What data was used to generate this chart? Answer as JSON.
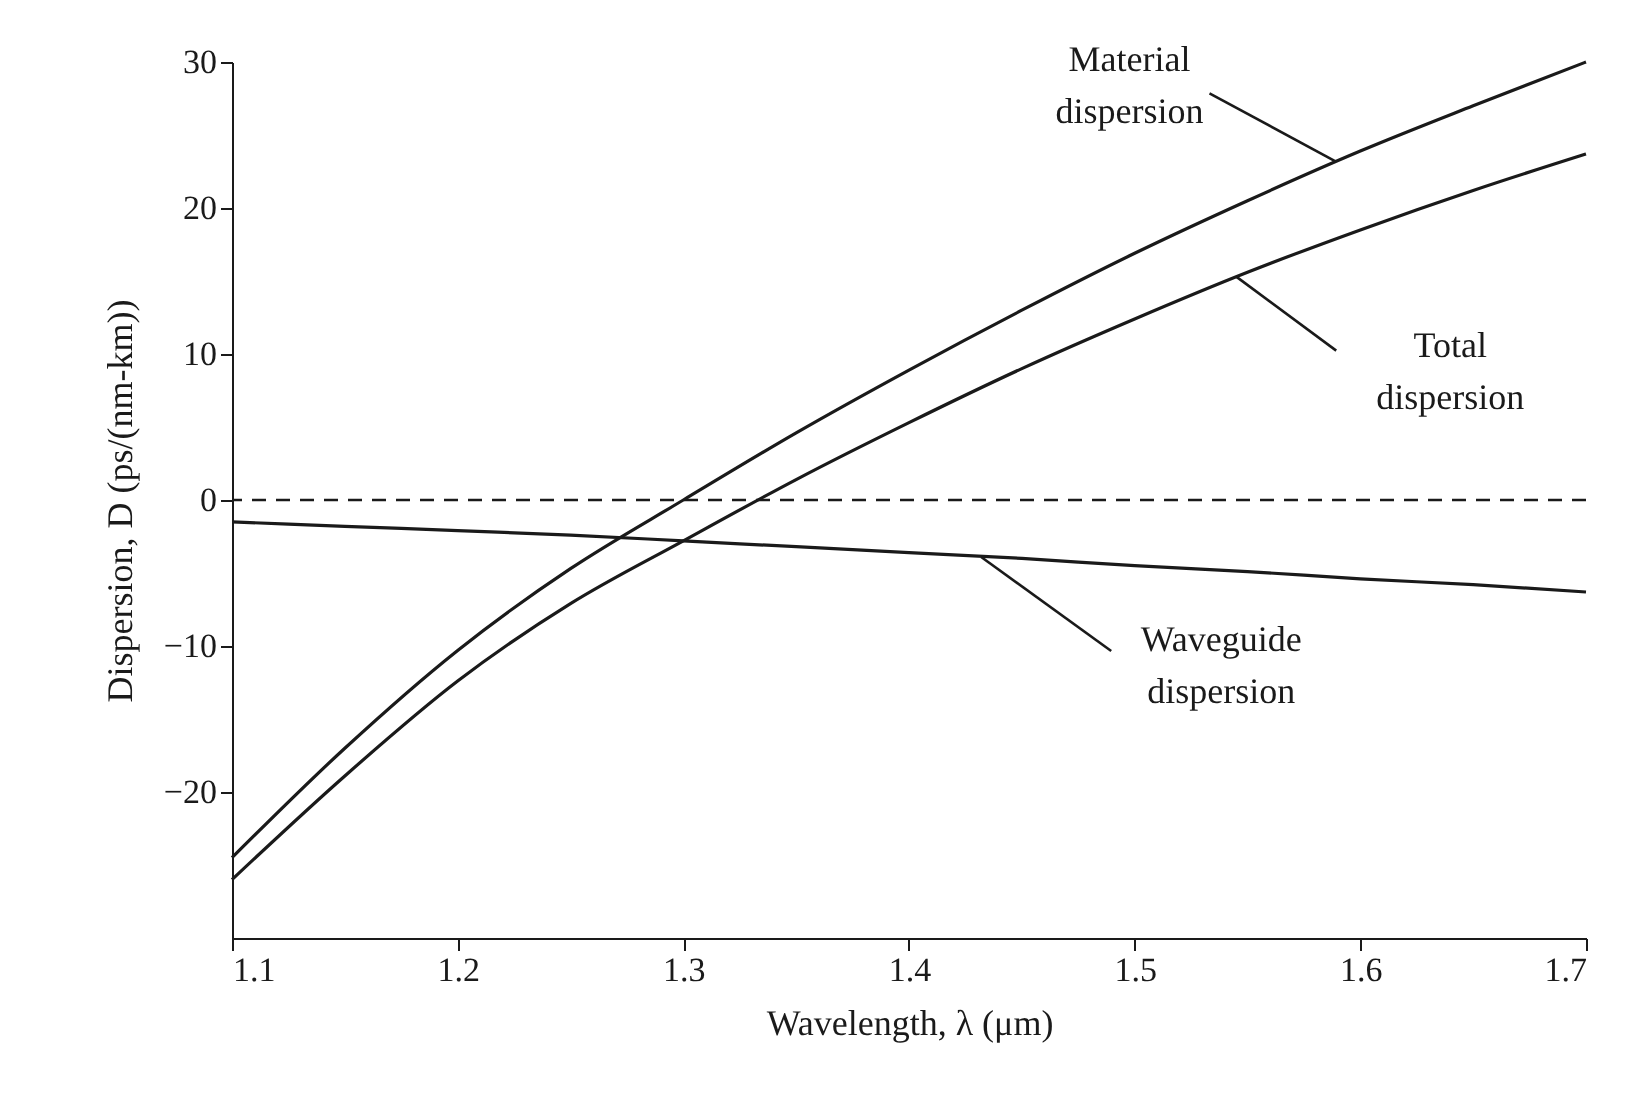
{
  "chart_data": {
    "type": "line",
    "xlabel": "Wavelength, λ (μm)",
    "ylabel": "Dispersion, D (ps/(nm-km))",
    "x": [
      1.1,
      1.15,
      1.2,
      1.25,
      1.3,
      1.35,
      1.4,
      1.45,
      1.5,
      1.55,
      1.6,
      1.65,
      1.7
    ],
    "series": [
      {
        "color": "#1a1a1a",
        "values": [
          -24.5,
          -17.0,
          -10.3,
          -4.7,
          0.0,
          4.6,
          8.9,
          13.0,
          16.9,
          20.5,
          23.9,
          27.0,
          30.0
        ]
      },
      {
        "color": "#1a1a1a",
        "values": [
          -26.0,
          -18.9,
          -12.4,
          -7.1,
          -2.8,
          1.4,
          5.3,
          9.0,
          12.4,
          15.6,
          18.5,
          21.2,
          23.7
        ]
      },
      {
        "color": "#1a1a1a",
        "values": [
          -1.5,
          -1.8,
          -2.1,
          -2.4,
          -2.8,
          -3.2,
          -3.6,
          -4.0,
          -4.5,
          -4.9,
          -5.4,
          -5.8,
          -6.3
        ]
      }
    ],
    "xlim": [
      1.1,
      1.7
    ],
    "xticks": [
      1.1,
      1.2,
      1.3,
      1.4,
      1.5,
      1.6,
      1.7
    ],
    "ylim": [
      -30,
      30
    ],
    "yticks": [
      -20,
      -10,
      0,
      10,
      20,
      30
    ],
    "ref_lines": [
      {
        "axis": "y",
        "value": 0,
        "line_style": "dashed",
        "color": "#1a1a1a"
      }
    ],
    "annotations": [
      {
        "text": "Material dispersion",
        "x": 1.589,
        "y": 23.2
      },
      {
        "text": "Total dispersion",
        "x": 1.545,
        "y": 15.3
      },
      {
        "text": "Waveguide dispersion",
        "x": 1.432,
        "y": -3.9
      }
    ],
    "grid": false,
    "legend": false
  }
}
